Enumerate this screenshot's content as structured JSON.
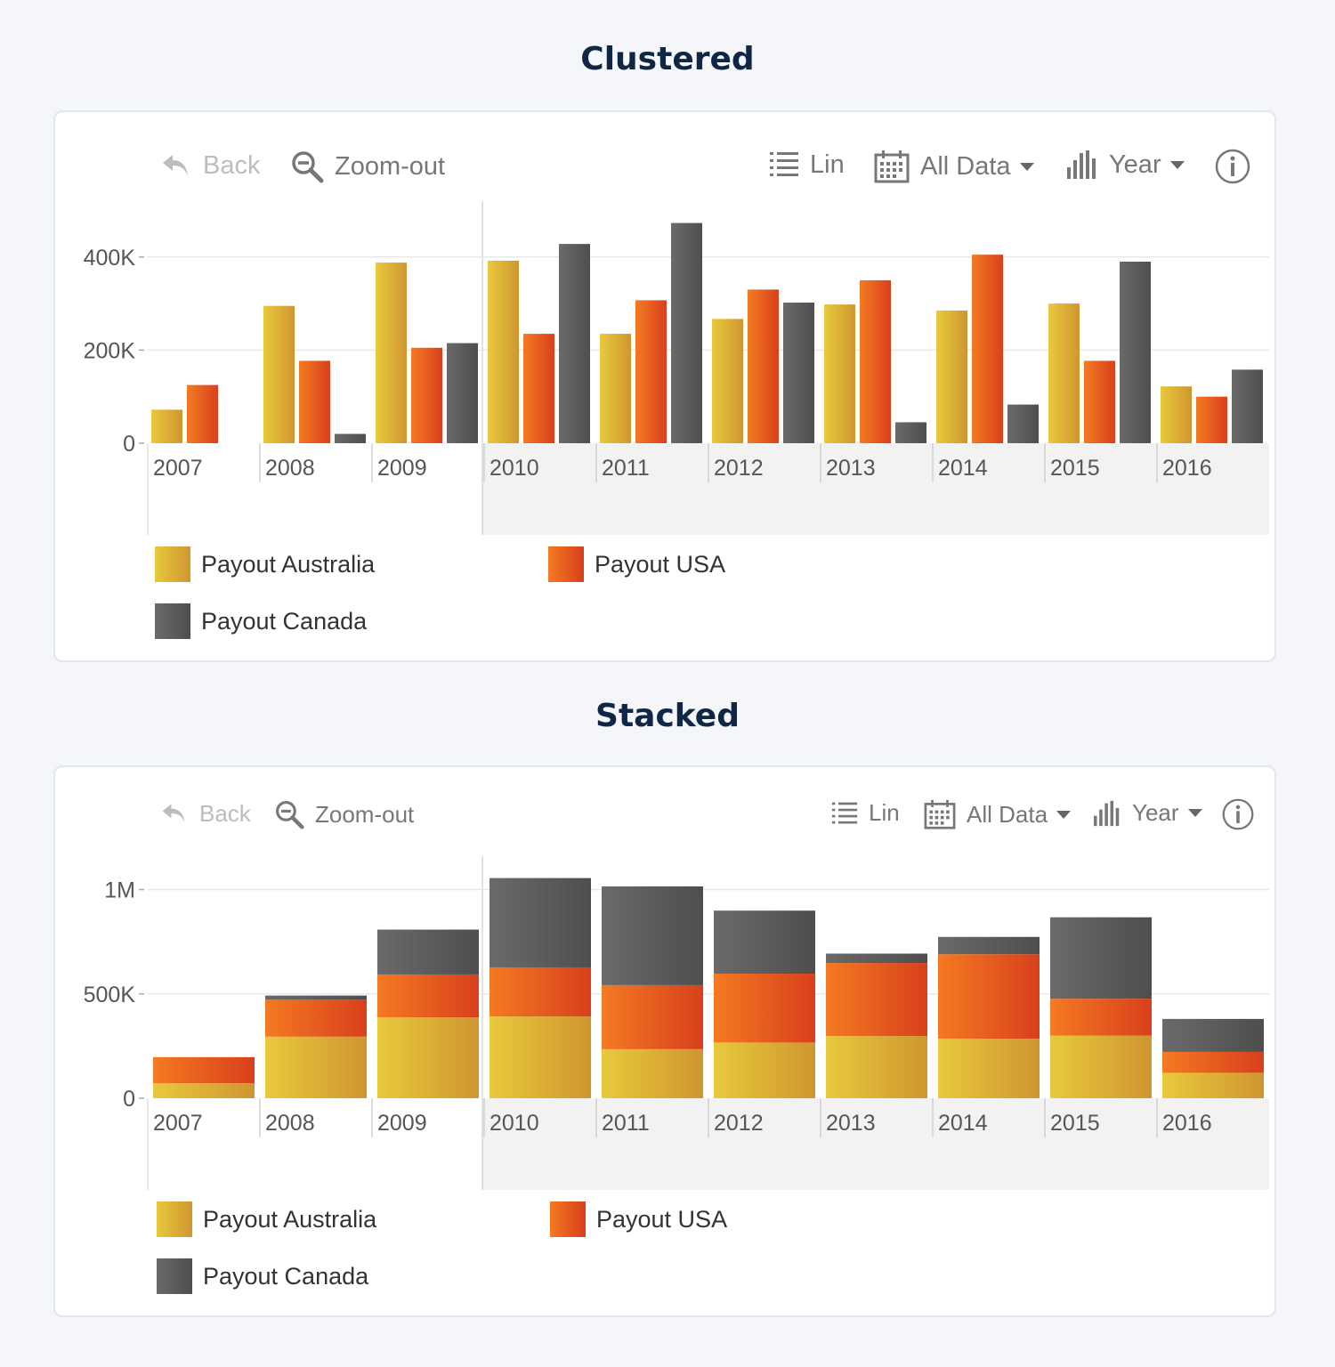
{
  "toolbar": {
    "back_label": "Back",
    "zoom_out_label": "Zoom-out",
    "scale_label": "Lin",
    "range_label": "All Data",
    "period_label": "Year",
    "icons": [
      "back-arrow-icon",
      "zoom-out-icon",
      "list-icon",
      "calendar-icon",
      "bar-chart-icon",
      "info-icon"
    ]
  },
  "colors": {
    "australia": [
      "#e8c93c",
      "#cf9630"
    ],
    "usa": [
      "#f47a22",
      "#d8401c"
    ],
    "canada": [
      "#6a6a6a",
      "#4e4e4e"
    ],
    "grid": "#e8e8e8",
    "selection": "#f2f2f2"
  },
  "chart_data": [
    {
      "type": "bar",
      "mode": "clustered",
      "title": "Clustered",
      "categories": [
        "2007",
        "2008",
        "2009",
        "2010",
        "2011",
        "2012",
        "2013",
        "2014",
        "2015",
        "2016"
      ],
      "series": [
        {
          "name": "Payout Australia",
          "values": [
            72000,
            295000,
            388000,
            392000,
            235000,
            267000,
            298000,
            285000,
            300000,
            122000
          ]
        },
        {
          "name": "Payout USA",
          "values": [
            125000,
            177000,
            205000,
            235000,
            307000,
            330000,
            350000,
            405000,
            177000,
            100000
          ]
        },
        {
          "name": "Payout Canada",
          "values": [
            0,
            20000,
            215000,
            428000,
            473000,
            302000,
            45000,
            83000,
            390000,
            158000
          ]
        }
      ],
      "y_ticks": [
        {
          "value": 0,
          "label": "0"
        },
        {
          "value": 200000,
          "label": "200K"
        },
        {
          "value": 400000,
          "label": "400K"
        }
      ],
      "ylim": [
        0,
        520000
      ],
      "selection_start": "2010",
      "legend_position": "bottom"
    },
    {
      "type": "bar",
      "mode": "stacked",
      "title": "Stacked",
      "categories": [
        "2007",
        "2008",
        "2009",
        "2010",
        "2011",
        "2012",
        "2013",
        "2014",
        "2015",
        "2016"
      ],
      "series": [
        {
          "name": "Payout Australia",
          "values": [
            72000,
            295000,
            388000,
            392000,
            235000,
            267000,
            298000,
            285000,
            300000,
            122000
          ]
        },
        {
          "name": "Payout USA",
          "values": [
            125000,
            177000,
            205000,
            235000,
            307000,
            330000,
            350000,
            405000,
            177000,
            100000
          ]
        },
        {
          "name": "Payout Canada",
          "values": [
            0,
            20000,
            215000,
            428000,
            473000,
            302000,
            45000,
            83000,
            390000,
            158000
          ]
        }
      ],
      "y_ticks": [
        {
          "value": 0,
          "label": "0"
        },
        {
          "value": 500000,
          "label": "500K"
        },
        {
          "value": 1000000,
          "label": "1M"
        }
      ],
      "ylim": [
        0,
        1160000
      ],
      "selection_start": "2010",
      "legend_position": "bottom"
    }
  ]
}
